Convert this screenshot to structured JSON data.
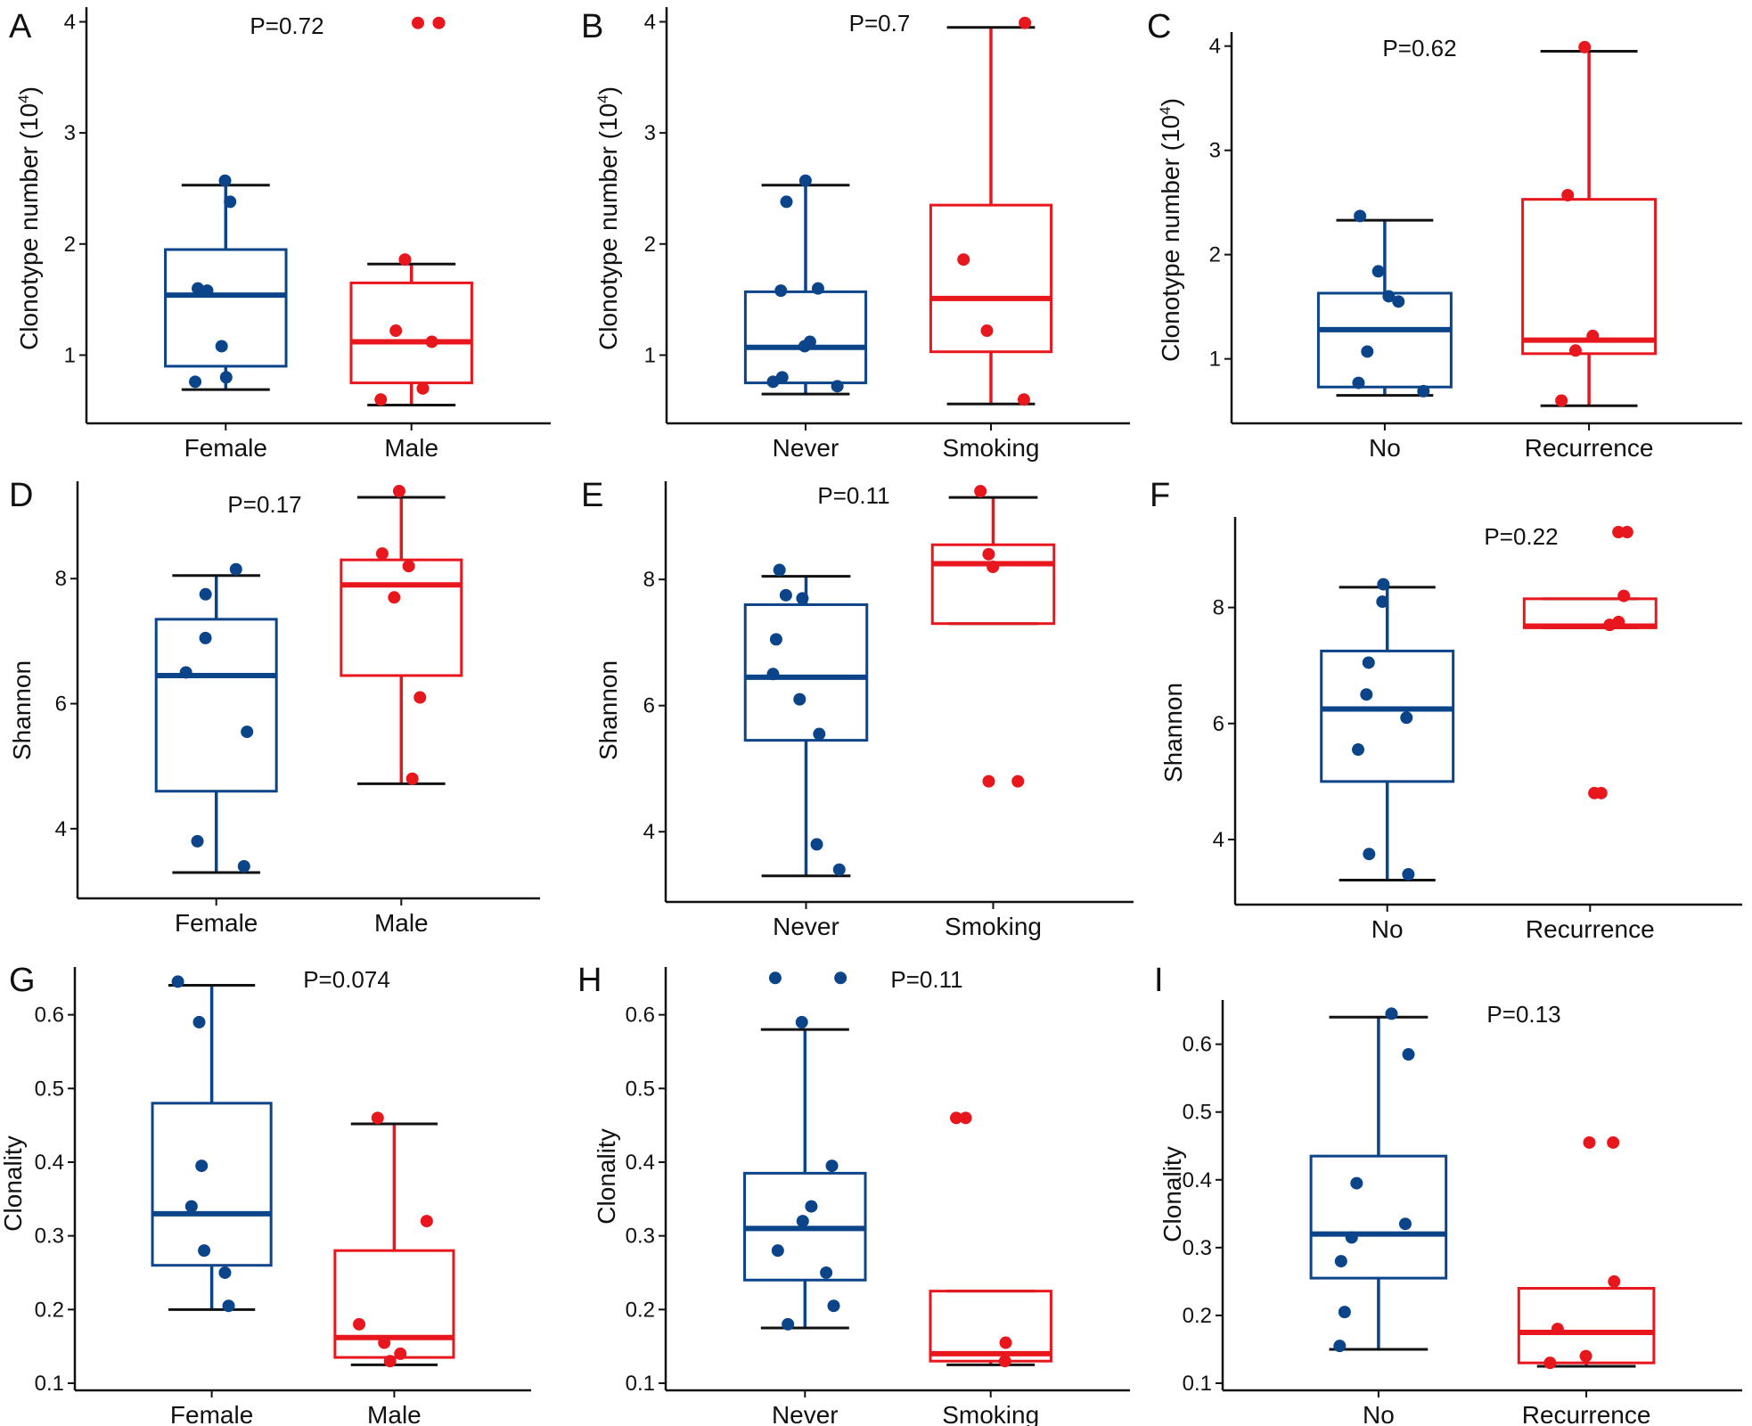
{
  "colors": {
    "group1": "#0b4489",
    "group2": "#e8161d",
    "whisker_cap": "#111111",
    "axis": "#111111"
  },
  "chart_data": [
    {
      "panel": "A",
      "type": "box",
      "p_value": "P=0.72",
      "ylabel": "Clonotype number (10",
      "ylabel_sup": "4",
      "ylabel_close": ")",
      "ylim": [
        0.45,
        4.1
      ],
      "yticks": [
        "1",
        "2",
        "3",
        "4"
      ],
      "ytick_values": [
        1,
        2,
        3,
        4
      ],
      "categories": [
        "Female",
        "Male"
      ],
      "series": [
        {
          "q1": 0.9,
          "median": 1.54,
          "q3": 1.95,
          "whisker_low": 0.69,
          "whisker_high": 2.53,
          "points": [
            2.57,
            2.38,
            1.6,
            1.58,
            1.08,
            0.8,
            0.76
          ]
        },
        {
          "q1": 0.75,
          "median": 1.12,
          "q3": 1.65,
          "whisker_low": 0.55,
          "whisker_high": 1.82,
          "points": [
            3.99,
            3.99,
            1.86,
            1.22,
            1.12,
            0.7,
            0.6
          ]
        }
      ]
    },
    {
      "panel": "B",
      "type": "box",
      "p_value": "P=0.7",
      "ylabel": "Clonotype number (10",
      "ylabel_sup": "4",
      "ylabel_close": ")",
      "ylim": [
        0.45,
        4.1
      ],
      "yticks": [
        "1",
        "2",
        "3",
        "4"
      ],
      "ytick_values": [
        1,
        2,
        3,
        4
      ],
      "categories": [
        "Never",
        "Smoking"
      ],
      "series": [
        {
          "q1": 0.75,
          "median": 1.07,
          "q3": 1.57,
          "whisker_low": 0.65,
          "whisker_high": 2.53,
          "points": [
            2.57,
            2.38,
            1.6,
            1.58,
            1.12,
            1.08,
            0.8,
            0.76,
            0.72
          ]
        },
        {
          "q1": 1.03,
          "median": 1.51,
          "q3": 2.35,
          "whisker_low": 0.56,
          "whisker_high": 3.95,
          "points": [
            3.99,
            1.86,
            1.22,
            0.6
          ]
        }
      ]
    },
    {
      "panel": "C",
      "type": "box",
      "p_value": "P=0.62",
      "ylabel": "Clonotype number (10",
      "ylabel_sup": "4",
      "ylabel_close": ")",
      "ylim": [
        0.45,
        4.1
      ],
      "yticks": [
        "1",
        "2",
        "3",
        "4"
      ],
      "ytick_values": [
        1,
        2,
        3,
        4
      ],
      "categories": [
        "No",
        "Recurrence"
      ],
      "series": [
        {
          "q1": 0.73,
          "median": 1.28,
          "q3": 1.63,
          "whisker_low": 0.65,
          "whisker_high": 2.33,
          "points": [
            2.37,
            1.84,
            1.6,
            1.55,
            1.07,
            0.77,
            0.69
          ]
        },
        {
          "q1": 1.05,
          "median": 1.18,
          "q3": 2.53,
          "whisker_low": 0.55,
          "whisker_high": 3.95,
          "points": [
            3.99,
            2.57,
            1.22,
            1.08,
            0.6
          ]
        }
      ]
    },
    {
      "panel": "D",
      "type": "box",
      "p_value": "P=0.17",
      "ylabel": "Shannon",
      "ylabel_sup": "",
      "ylabel_close": "",
      "ylim": [
        3.0,
        9.5
      ],
      "yticks": [
        "4",
        "6",
        "8"
      ],
      "ytick_values": [
        4,
        6,
        8
      ],
      "categories": [
        "Female",
        "Male"
      ],
      "series": [
        {
          "q1": 4.6,
          "median": 6.45,
          "q3": 7.35,
          "whisker_low": 3.3,
          "whisker_high": 8.05,
          "points": [
            8.15,
            7.75,
            7.05,
            6.5,
            5.55,
            3.8,
            3.4
          ]
        },
        {
          "q1": 6.45,
          "median": 7.9,
          "q3": 8.3,
          "whisker_low": 4.72,
          "whisker_high": 9.3,
          "points": [
            9.4,
            8.4,
            8.2,
            7.7,
            6.1,
            4.8
          ]
        }
      ]
    },
    {
      "panel": "E",
      "type": "box",
      "p_value": "P=0.11",
      "ylabel": "Shannon",
      "ylabel_sup": "",
      "ylabel_close": "",
      "ylim": [
        3.0,
        9.5
      ],
      "yticks": [
        "4",
        "6",
        "8"
      ],
      "ytick_values": [
        4,
        6,
        8
      ],
      "categories": [
        "Never",
        "Smoking"
      ],
      "series": [
        {
          "q1": 5.45,
          "median": 6.45,
          "q3": 7.6,
          "whisker_low": 3.3,
          "whisker_high": 8.05,
          "points": [
            8.15,
            7.75,
            7.7,
            7.05,
            6.5,
            6.1,
            5.55,
            3.8,
            3.4
          ]
        },
        {
          "q1": 7.3,
          "median": 8.25,
          "q3": 8.55,
          "whisker_low": 7.3,
          "whisker_high": 9.3,
          "points": [
            9.4,
            8.4,
            8.2,
            4.8,
            4.8
          ]
        }
      ]
    },
    {
      "panel": "F",
      "type": "box",
      "p_value": "P=0.22",
      "ylabel": "Shannon",
      "ylabel_sup": "",
      "ylabel_close": "",
      "ylim": [
        3.0,
        9.5
      ],
      "yticks": [
        "4",
        "6",
        "8"
      ],
      "ytick_values": [
        4,
        6,
        8
      ],
      "categories": [
        "No",
        "Recurrence"
      ],
      "series": [
        {
          "q1": 5.0,
          "median": 6.25,
          "q3": 7.25,
          "whisker_low": 3.3,
          "whisker_high": 8.35,
          "points": [
            8.4,
            8.1,
            7.05,
            6.5,
            6.1,
            5.55,
            3.75,
            3.4
          ]
        },
        {
          "q1": 7.65,
          "median": 7.68,
          "q3": 8.15,
          "whisker_low": 7.65,
          "whisker_high": 8.15,
          "points": [
            9.3,
            9.3,
            8.2,
            7.75,
            7.7,
            4.8,
            4.8
          ]
        }
      ]
    },
    {
      "panel": "G",
      "type": "box",
      "p_value": "P=0.074",
      "ylabel": "Clonality",
      "ylabel_sup": "",
      "ylabel_close": "",
      "ylim": [
        0.1,
        0.66
      ],
      "yticks": [
        "0.1",
        "0.2",
        "0.3",
        "0.4",
        "0.5",
        "0.6"
      ],
      "ytick_values": [
        0.1,
        0.2,
        0.3,
        0.4,
        0.5,
        0.6
      ],
      "categories": [
        "Female",
        "Male"
      ],
      "series": [
        {
          "q1": 0.26,
          "median": 0.33,
          "q3": 0.48,
          "whisker_low": 0.2,
          "whisker_high": 0.64,
          "points": [
            0.645,
            0.59,
            0.395,
            0.34,
            0.28,
            0.25,
            0.205
          ]
        },
        {
          "q1": 0.135,
          "median": 0.162,
          "q3": 0.28,
          "whisker_low": 0.125,
          "whisker_high": 0.452,
          "points": [
            0.46,
            0.32,
            0.18,
            0.155,
            0.14,
            0.13
          ]
        }
      ]
    },
    {
      "panel": "H",
      "type": "box",
      "p_value": "P=0.11",
      "ylabel": "Clonality",
      "ylabel_sup": "",
      "ylabel_close": "",
      "ylim": [
        0.1,
        0.66
      ],
      "yticks": [
        "0.1",
        "0.2",
        "0.3",
        "0.4",
        "0.5",
        "0.6"
      ],
      "ytick_values": [
        0.1,
        0.2,
        0.3,
        0.4,
        0.5,
        0.6
      ],
      "categories": [
        "Never",
        "Smoking"
      ],
      "series": [
        {
          "q1": 0.24,
          "median": 0.31,
          "q3": 0.385,
          "whisker_low": 0.175,
          "whisker_high": 0.58,
          "points": [
            0.65,
            0.65,
            0.59,
            0.395,
            0.34,
            0.32,
            0.28,
            0.25,
            0.205,
            0.18
          ]
        },
        {
          "q1": 0.13,
          "median": 0.14,
          "q3": 0.225,
          "whisker_low": 0.125,
          "whisker_high": 0.225,
          "points": [
            0.46,
            0.46,
            0.155,
            0.13
          ]
        }
      ]
    },
    {
      "panel": "I",
      "type": "box",
      "p_value": "P=0.13",
      "ylabel": "Clonality",
      "ylabel_sup": "",
      "ylabel_close": "",
      "ylim": [
        0.1,
        0.66
      ],
      "yticks": [
        "0.1",
        "0.2",
        "0.3",
        "0.4",
        "0.5",
        "0.6"
      ],
      "ytick_values": [
        0.1,
        0.2,
        0.3,
        0.4,
        0.5,
        0.6
      ],
      "categories": [
        "No",
        "Recurrence"
      ],
      "series": [
        {
          "q1": 0.255,
          "median": 0.32,
          "q3": 0.435,
          "whisker_low": 0.15,
          "whisker_high": 0.64,
          "points": [
            0.645,
            0.585,
            0.395,
            0.335,
            0.315,
            0.28,
            0.205,
            0.155
          ]
        },
        {
          "q1": 0.13,
          "median": 0.175,
          "q3": 0.24,
          "whisker_low": 0.125,
          "whisker_high": 0.24,
          "points": [
            0.455,
            0.455,
            0.25,
            0.18,
            0.14,
            0.13
          ]
        }
      ]
    }
  ]
}
